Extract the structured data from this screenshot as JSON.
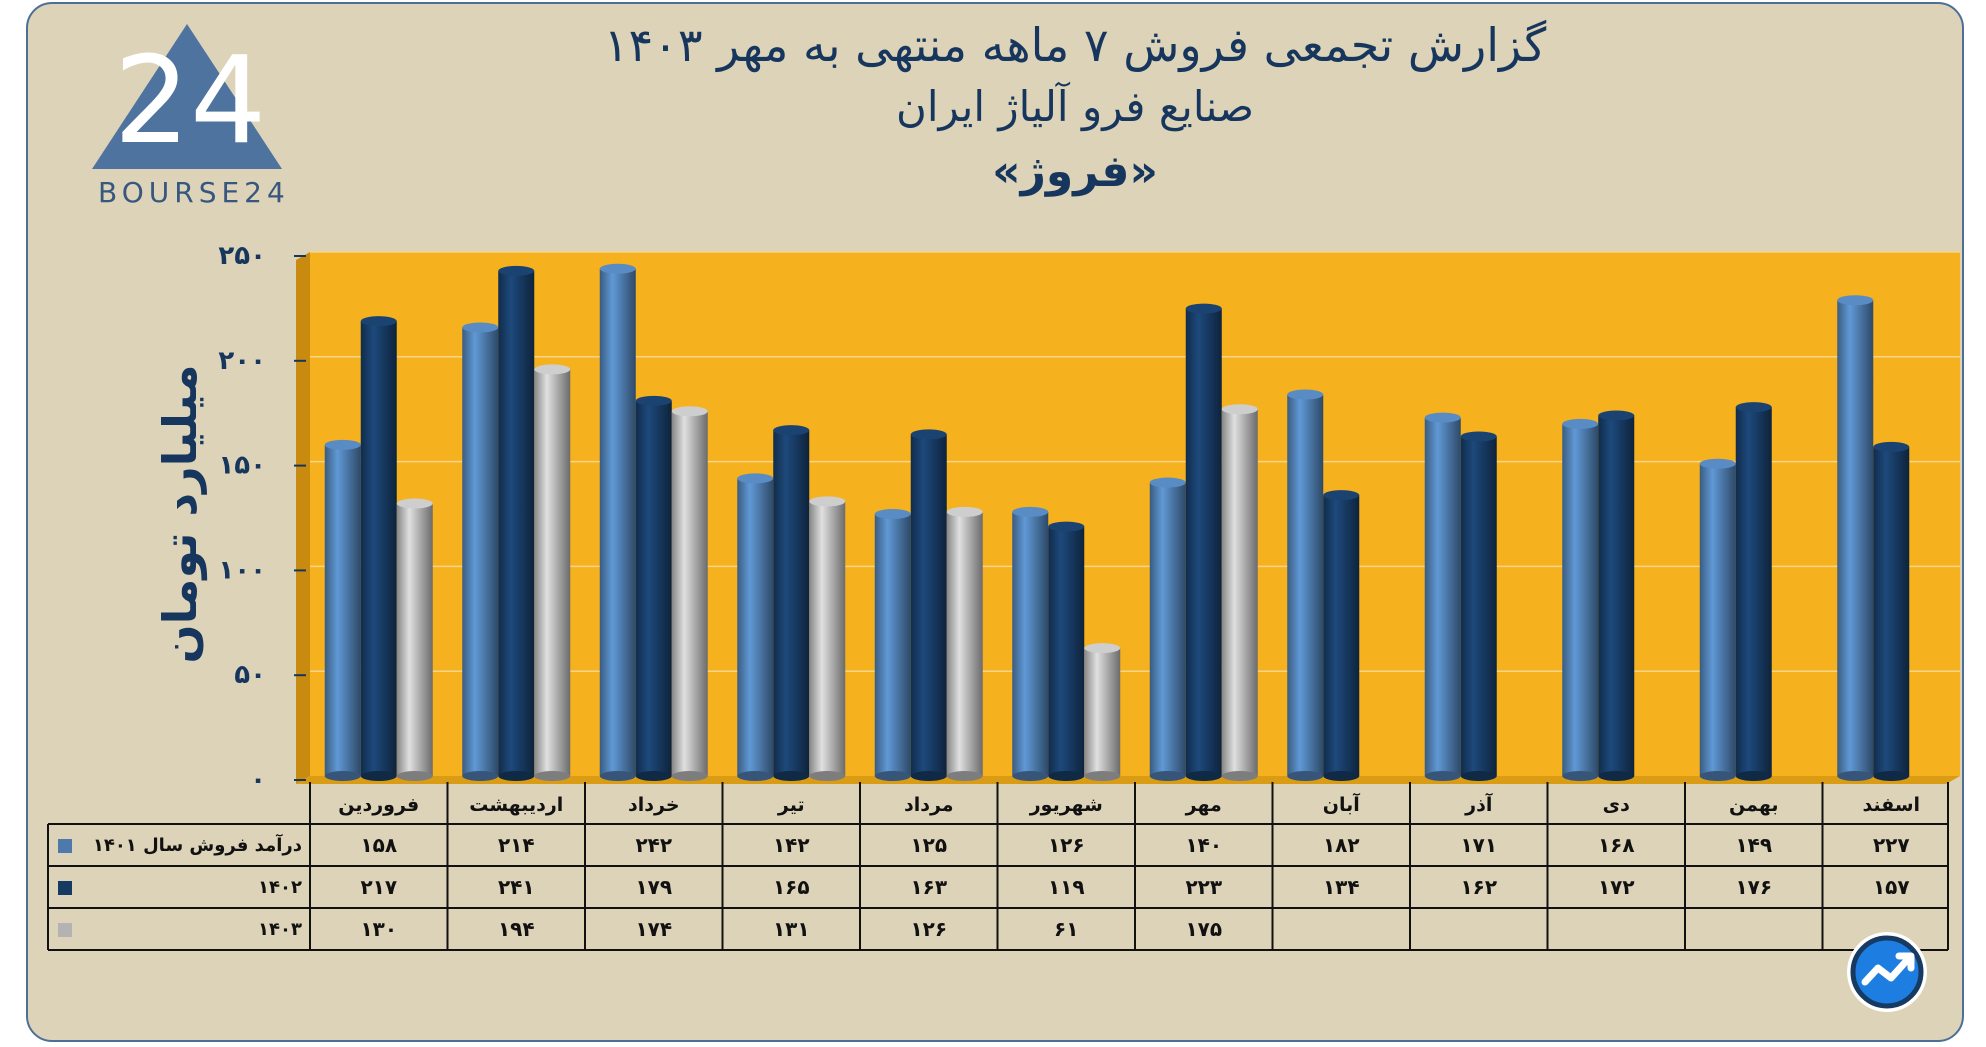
{
  "header": {
    "title_line1": "گزارش تجمعی فروش ۷ ماهه منتهی به مهر ۱۴۰۳",
    "title_line2": "صنایع فرو آلیاژ ایران",
    "title_line3": "«فروژ»"
  },
  "logo": {
    "glyph": "24",
    "text": "BOURSE24"
  },
  "colors": {
    "plot_bg": "#f6b11e",
    "frame_bg": "#ddd3b8",
    "s1401": "#4d7aab",
    "s1402": "#173a63",
    "s1403": "#b3b3b3",
    "text": "#16365e"
  },
  "chart_data": {
    "type": "bar",
    "ylabel": "میلیارد تومان",
    "ylim": [
      0,
      250
    ],
    "yticks": [
      "۰",
      "۵۰",
      "۱۰۰",
      "۱۵۰",
      "۲۰۰",
      "۲۵۰"
    ],
    "ytick_values": [
      0,
      50,
      100,
      150,
      200,
      250
    ],
    "grid": true,
    "categories": [
      "فروردین",
      "اردیبهشت",
      "خرداد",
      "تیر",
      "مرداد",
      "شهریور",
      "مهر",
      "آبان",
      "آذر",
      "دی",
      "بهمن",
      "اسفند"
    ],
    "series": [
      {
        "name": "درآمد فروش سال ۱۴۰۱",
        "values": [
          158,
          214,
          242,
          142,
          125,
          126,
          140,
          182,
          171,
          168,
          149,
          227
        ],
        "labels": [
          "۱۵۸",
          "۲۱۴",
          "۲۴۲",
          "۱۴۲",
          "۱۲۵",
          "۱۲۶",
          "۱۴۰",
          "۱۸۲",
          "۱۷۱",
          "۱۶۸",
          "۱۴۹",
          "۲۲۷"
        ],
        "color": "#4d7aab"
      },
      {
        "name": "۱۴۰۲",
        "values": [
          217,
          241,
          179,
          165,
          163,
          119,
          223,
          134,
          162,
          172,
          176,
          157
        ],
        "labels": [
          "۲۱۷",
          "۲۴۱",
          "۱۷۹",
          "۱۶۵",
          "۱۶۳",
          "۱۱۹",
          "۲۲۳",
          "۱۳۴",
          "۱۶۲",
          "۱۷۲",
          "۱۷۶",
          "۱۵۷"
        ],
        "color": "#173a63"
      },
      {
        "name": "۱۴۰۳",
        "values": [
          130,
          194,
          174,
          131,
          126,
          61,
          175,
          null,
          null,
          null,
          null,
          null
        ],
        "labels": [
          "۱۳۰",
          "۱۹۴",
          "۱۷۴",
          "۱۳۱",
          "۱۲۶",
          "۶۱",
          "۱۷۵",
          "",
          "",
          "",
          "",
          ""
        ],
        "color": "#b3b3b3"
      }
    ]
  }
}
